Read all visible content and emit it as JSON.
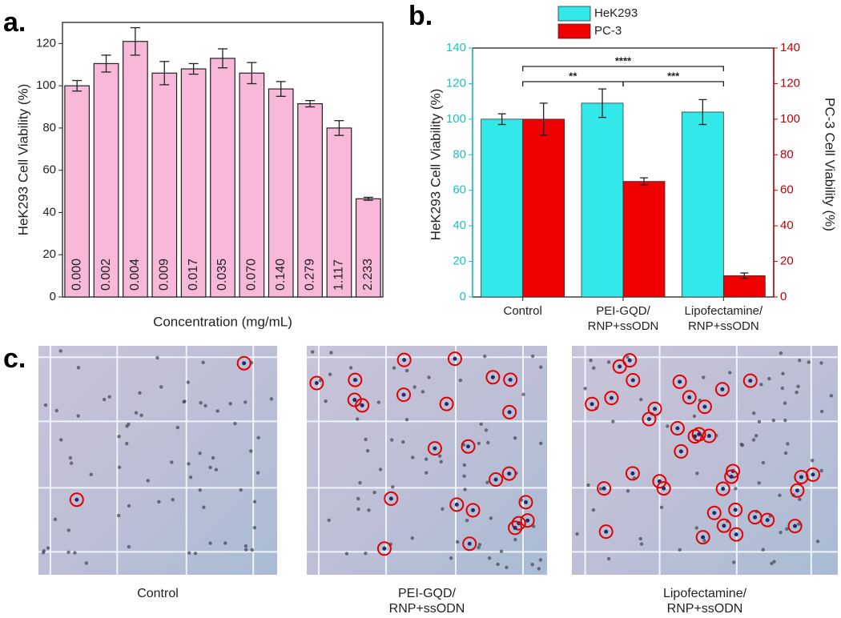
{
  "panels": [
    "a.",
    "b.",
    "c."
  ],
  "chart_data": [
    {
      "type": "bar",
      "x_label": "Concentration (mg/mL)",
      "y_label": "HeK293 Cell Viability (%)",
      "categories": [
        "0.000",
        "0.002",
        "0.004",
        "0.009",
        "0.017",
        "0.035",
        "0.070",
        "0.140",
        "0.279",
        "1.117",
        "2.233"
      ],
      "values": [
        100,
        110.5,
        121,
        106,
        108,
        113,
        106,
        98.5,
        91.5,
        80,
        46.5
      ],
      "errors": [
        2.5,
        4,
        6.5,
        5.5,
        2.5,
        4.5,
        5,
        3.5,
        1.5,
        3.5,
        0.7
      ],
      "color": "#f7b8da",
      "ylim": [
        0,
        130
      ],
      "yticks": [
        0,
        20,
        40,
        60,
        80,
        100,
        120
      ]
    },
    {
      "type": "grouped_bar",
      "y_label": "HeK293 Cell Viability (%)",
      "y2_label": "PC-3 Cell Viability (%)",
      "categories": [
        [
          "Control"
        ],
        [
          "PEI-GQD/",
          "RNP+ssODN"
        ],
        [
          "Lipofectamine/",
          "RNP+ssODN"
        ]
      ],
      "series": [
        {
          "name": "HeK293",
          "color": "#33e8e8",
          "values": [
            100,
            109,
            104
          ],
          "errors": [
            3,
            8,
            7
          ]
        },
        {
          "name": "PC-3",
          "color": "#f00000",
          "axis": "y2",
          "values": [
            100,
            65,
            12
          ],
          "errors": [
            9,
            2,
            1.5
          ]
        }
      ],
      "ylim": [
        0,
        140
      ],
      "yticks": [
        0,
        20,
        40,
        60,
        80,
        100,
        120,
        140
      ],
      "y2lim": [
        0,
        140
      ],
      "y2ticks": [
        0,
        20,
        40,
        60,
        80,
        100,
        120,
        140
      ],
      "axis_colors": {
        "y": "#20c0c0",
        "y2": "#c00000"
      },
      "annotations": [
        {
          "text": "****",
          "from": 0,
          "to": 2
        },
        {
          "text": "**",
          "from": 0,
          "to": 1
        },
        {
          "text": "***",
          "from": 1,
          "to": 2
        }
      ],
      "legend": "top"
    }
  ],
  "micrographs": [
    {
      "caption": [
        "Control"
      ]
    },
    {
      "caption": [
        "PEI-GQD/",
        "RNP+ssODN"
      ]
    },
    {
      "caption": [
        "Lipofectamine/",
        "RNP+ssODN"
      ]
    }
  ]
}
